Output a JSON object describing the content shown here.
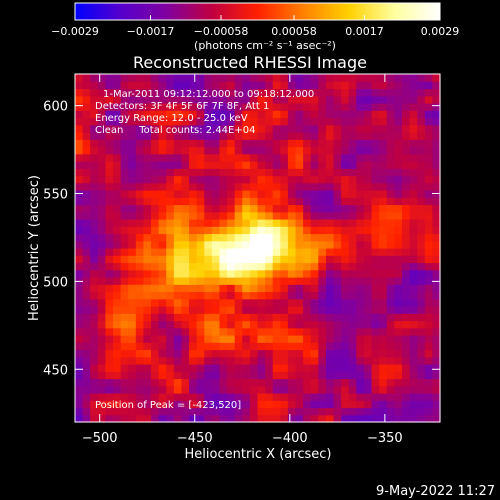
{
  "chart_data": {
    "type": "heatmap",
    "title": "Reconstructed RHESSI Image",
    "xlabel": "Heliocentric X (arcsec)",
    "ylabel": "Heliocentric Y (arcsec)",
    "xlim": [
      -513,
      -321
    ],
    "ylim": [
      420,
      618
    ],
    "x_ticks": [
      -500,
      -450,
      -400,
      -350
    ],
    "y_ticks": [
      450,
      500,
      550,
      600
    ],
    "x_tick_labels": [
      "−500",
      "−450",
      "−400",
      "−350"
    ],
    "y_tick_labels": [
      "450",
      "500",
      "550",
      "600"
    ],
    "colorbar": {
      "range": [
        -0.0029,
        0.0029
      ],
      "tick_values": [
        -0.0029,
        -0.0017,
        -0.00058,
        0.00058,
        0.0017,
        0.0029
      ],
      "tick_labels": [
        "−0.0029",
        "−0.0017",
        "−0.00058",
        "0.00058",
        "0.0017",
        "0.0029"
      ],
      "unit_label": "(photons cm⁻² s⁻¹ asec⁻²)",
      "colors": [
        "#0000ff",
        "#5500cc",
        "#8000a0",
        "#c00040",
        "#ff2000",
        "#ff8000",
        "#ffd000",
        "#ffffa0",
        "#ffffff"
      ]
    },
    "annotations": [
      "1-Mar-2011 09:12:12.000 to 09:18:12.000",
      "Detectors: 3F 4F 5F 6F 7F 8F, Att 1",
      "Energy Range: 12.0 - 25.0 keV",
      "Clean     Total counts: 2.44E+04"
    ],
    "peak_label": "Position of Peak = [-423,520]",
    "peak": {
      "x": -423,
      "y": 520
    },
    "sources": [
      {
        "x": -423,
        "y": 520,
        "sx": 22,
        "sy": 15,
        "amp": 0.0029
      },
      {
        "x": -445,
        "y": 512,
        "sx": 16,
        "sy": 12,
        "amp": 0.0014
      },
      {
        "x": -405,
        "y": 515,
        "sx": 18,
        "sy": 14,
        "amp": 0.0012
      },
      {
        "x": -465,
        "y": 495,
        "sx": 20,
        "sy": 22,
        "amp": 0.0008
      },
      {
        "x": -440,
        "y": 470,
        "sx": 16,
        "sy": 16,
        "amp": 0.0005
      },
      {
        "x": -400,
        "y": 450,
        "sx": 22,
        "sy": 18,
        "amp": 0.0005
      },
      {
        "x": -420,
        "y": 565,
        "sx": 30,
        "sy": 18,
        "amp": 0.0005
      },
      {
        "x": -365,
        "y": 525,
        "sx": 14,
        "sy": 14,
        "amp": 0.0004
      }
    ],
    "grid": false
  },
  "footer_timestamp": "9-May-2022 11:27"
}
